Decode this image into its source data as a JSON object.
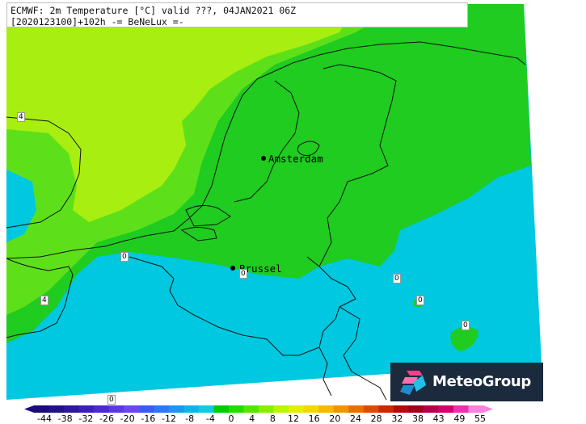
{
  "header": {
    "line1": "ECMWF: 2m Temperature [°C] valid ???, 04JAN2021 06Z",
    "line2": "[2020123100]+102h -= BeNeLux =-"
  },
  "cities": [
    {
      "name": "Amsterdam",
      "id": "amsterdam"
    },
    {
      "name": "Brussel",
      "id": "brussel"
    }
  ],
  "contour_labels": [
    "4",
    "0",
    "0",
    "0",
    "0",
    "0",
    "4",
    "0"
  ],
  "logo": {
    "text": "MeteoGroup",
    "icon": "meteogroup-logo-icon"
  },
  "colorbar": {
    "labels": [
      "-44",
      "-38",
      "-32",
      "-26",
      "-20",
      "-16",
      "-12",
      "-8",
      "-4",
      "0",
      "4",
      "8",
      "12",
      "16",
      "20",
      "24",
      "28",
      "32",
      "38",
      "43",
      "49",
      "55"
    ],
    "colors": [
      "#1a0a7a",
      "#23108c",
      "#2d16a0",
      "#3b20b8",
      "#4b2acf",
      "#5b38e0",
      "#6a48f0",
      "#3a5cf2",
      "#2a78f4",
      "#1c96f0",
      "#12b4e8",
      "#10cbe0",
      "#00cc00",
      "#22dd00",
      "#55e600",
      "#88ee00",
      "#bbf400",
      "#e2f000",
      "#f4d800",
      "#f7b800",
      "#f29400",
      "#e87000",
      "#dc4c00",
      "#cc2800",
      "#b40a0a",
      "#a00020",
      "#b8004a",
      "#d40070",
      "#ee30b0",
      "#ff80e0"
    ]
  },
  "colors": {
    "yellowgreen": "#a8ee10",
    "lightgreen": "#5de01a",
    "green": "#1fcc1f",
    "cyan": "#00c8e0"
  }
}
